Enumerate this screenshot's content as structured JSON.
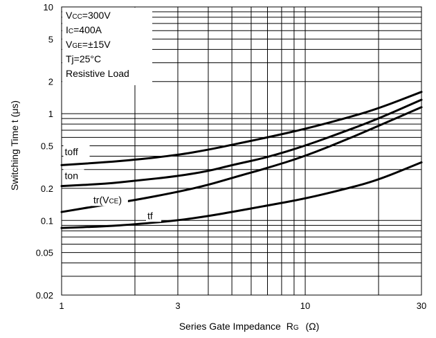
{
  "chart_data": {
    "type": "line",
    "xlabel": "Series Gate Impedance",
    "xlabel_symbol": "R",
    "xlabel_symbol_sub": "G",
    "xlabel_unit": "(Ω)",
    "ylabel": "Switching Time t  (μs)",
    "x_scale": "log",
    "y_scale": "log",
    "xlim": [
      1,
      30
    ],
    "ylim": [
      0.02,
      10
    ],
    "grid": true,
    "x_ticks": [
      {
        "value": 1,
        "label": "1"
      },
      {
        "value": 3,
        "label": "3"
      },
      {
        "value": 10,
        "label": "10"
      },
      {
        "value": 30,
        "label": "30"
      }
    ],
    "y_ticks": [
      {
        "value": 0.02,
        "label": "0.02"
      },
      {
        "value": 0.05,
        "label": "0.05"
      },
      {
        "value": 0.1,
        "label": "0.1"
      },
      {
        "value": 0.2,
        "label": "0.2"
      },
      {
        "value": 0.5,
        "label": "0.5"
      },
      {
        "value": 1,
        "label": "1"
      },
      {
        "value": 2,
        "label": "2"
      },
      {
        "value": 5,
        "label": "5"
      },
      {
        "value": 10,
        "label": "10"
      }
    ],
    "conditions": [
      {
        "main": "V",
        "sub": "CC",
        "rest": "=300V"
      },
      {
        "main": "I",
        "sub": "C",
        "rest": "=400A"
      },
      {
        "main": "V",
        "sub": "GE",
        "rest": "=±15V"
      },
      {
        "main": "Tj=25°C",
        "sub": "",
        "rest": ""
      },
      {
        "main": "Resistive Load",
        "sub": "",
        "rest": ""
      }
    ],
    "series": [
      {
        "name": "toff",
        "label_sub": "",
        "label_x": 1.03,
        "label_y": 0.41,
        "x": [
          1,
          1.5,
          2,
          3,
          4,
          5,
          7,
          10,
          15,
          20,
          30
        ],
        "values": [
          0.33,
          0.35,
          0.37,
          0.41,
          0.46,
          0.51,
          0.6,
          0.72,
          0.92,
          1.12,
          1.6
        ]
      },
      {
        "name": "ton",
        "label_sub": "",
        "label_x": 1.03,
        "label_y": 0.245,
        "x": [
          1,
          1.5,
          2,
          3,
          4,
          5,
          7,
          10,
          15,
          20,
          30
        ],
        "values": [
          0.21,
          0.22,
          0.235,
          0.26,
          0.29,
          0.33,
          0.39,
          0.5,
          0.7,
          0.9,
          1.35
        ]
      },
      {
        "name": "tr",
        "label_sub": "(V",
        "label_sub2": "CE",
        "label_sub3": ")",
        "label_x": 1.35,
        "label_y": 0.145,
        "x": [
          1,
          1.5,
          2,
          3,
          4,
          5,
          7,
          10,
          15,
          20,
          30
        ],
        "values": [
          0.12,
          0.14,
          0.155,
          0.185,
          0.215,
          0.25,
          0.31,
          0.4,
          0.58,
          0.77,
          1.15
        ]
      },
      {
        "name": "tf",
        "label_sub": "",
        "label_x": 2.25,
        "label_y": 0.103,
        "x": [
          1,
          1.5,
          2,
          3,
          4,
          5,
          7,
          10,
          15,
          20,
          30
        ],
        "values": [
          0.085,
          0.088,
          0.092,
          0.1,
          0.11,
          0.12,
          0.138,
          0.16,
          0.2,
          0.24,
          0.35
        ]
      }
    ]
  }
}
